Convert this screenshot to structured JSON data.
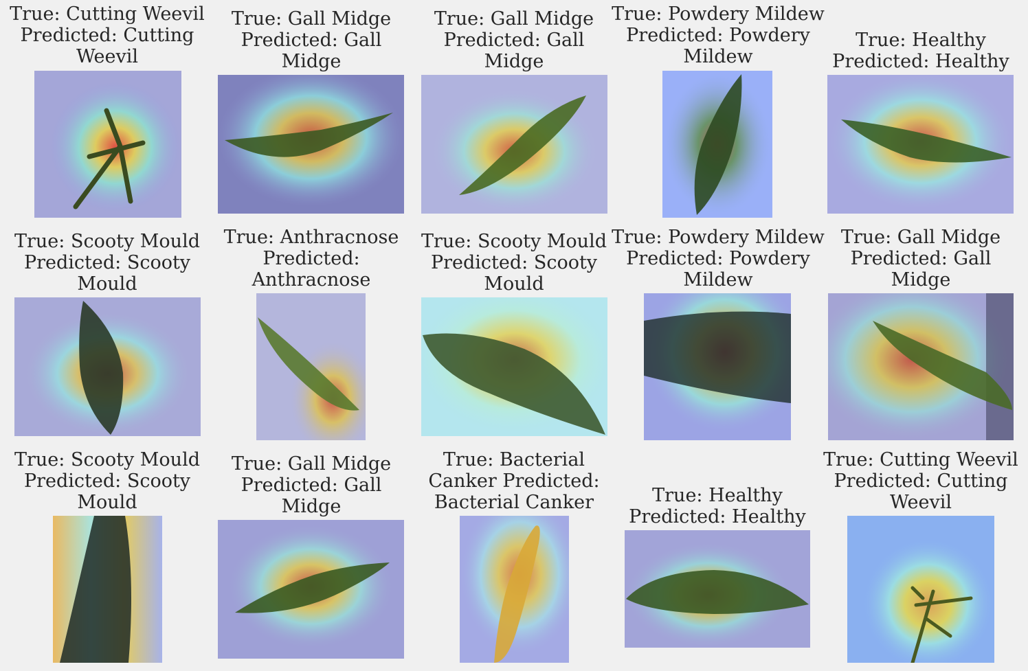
{
  "figure": {
    "background": "#f0f0f0",
    "panels": [
      {
        "lines": [
          "True: Cutting Weevil",
          "Predicted: Cutting",
          "Weevil"
        ],
        "image": "leaf-heatmap",
        "subject": "mango twig with cut leaves, heat on junction"
      },
      {
        "lines": [
          "True: Gall Midge",
          "Predicted: Gall",
          "Midge"
        ],
        "image": "leaf-heatmap",
        "subject": "horizontal leaf with gall spots"
      },
      {
        "lines": [
          "True: Gall Midge",
          "Predicted: Gall",
          "Midge"
        ],
        "image": "leaf-heatmap",
        "subject": "diagonal leaf, heat at center"
      },
      {
        "lines": [
          "True: Powdery Mildew",
          "Predicted: Powdery",
          "Mildew"
        ],
        "image": "leaf-heatmap",
        "subject": "upright speckled leaf"
      },
      {
        "lines": [
          "True: Healthy",
          "Predicted: Healthy"
        ],
        "image": "leaf-heatmap",
        "subject": "horizontal healthy leaf"
      },
      {
        "lines": [
          "True: Scooty Mould",
          "Predicted: Scooty",
          "Mould"
        ],
        "image": "leaf-heatmap",
        "subject": "vertical dark leaf"
      },
      {
        "lines": [
          "True: Anthracnose",
          "Predicted:",
          "Anthracnose"
        ],
        "image": "leaf-heatmap",
        "subject": "diagonal leaf, heat at tip"
      },
      {
        "lines": [
          "True: Scooty Mould",
          "Predicted: Scooty",
          "Mould"
        ],
        "image": "leaf-heatmap",
        "subject": "close-up spotted leaf"
      },
      {
        "lines": [
          "True: Powdery Mildew",
          "Predicted: Powdery",
          "Mildew"
        ],
        "image": "leaf-heatmap",
        "subject": "close-up dark leaf"
      },
      {
        "lines": [
          "True: Gall Midge",
          "Predicted: Gall",
          "Midge"
        ],
        "image": "leaf-heatmap",
        "subject": "diagonal leaf with spots"
      },
      {
        "lines": [
          "True: Scooty Mould",
          "Predicted: Scooty",
          "Mould"
        ],
        "image": "leaf-heatmap",
        "subject": "tall dark leaf"
      },
      {
        "lines": [
          "True: Gall Midge",
          "Predicted: Gall",
          "Midge"
        ],
        "image": "leaf-heatmap",
        "subject": "horizontal leaf with gall spots"
      },
      {
        "lines": [
          "True: Bacterial",
          "Canker Predicted:",
          "Bacterial Canker"
        ],
        "image": "leaf-heatmap",
        "subject": "vertical yellow leaf"
      },
      {
        "lines": [
          "True: Healthy",
          "Predicted: Healthy"
        ],
        "image": "leaf-heatmap",
        "subject": "horizontal healthy leaf"
      },
      {
        "lines": [
          "True: Cutting Weevil",
          "Predicted: Cutting",
          "Weevil"
        ],
        "image": "leaf-heatmap",
        "subject": "small twig on blue background"
      }
    ]
  }
}
